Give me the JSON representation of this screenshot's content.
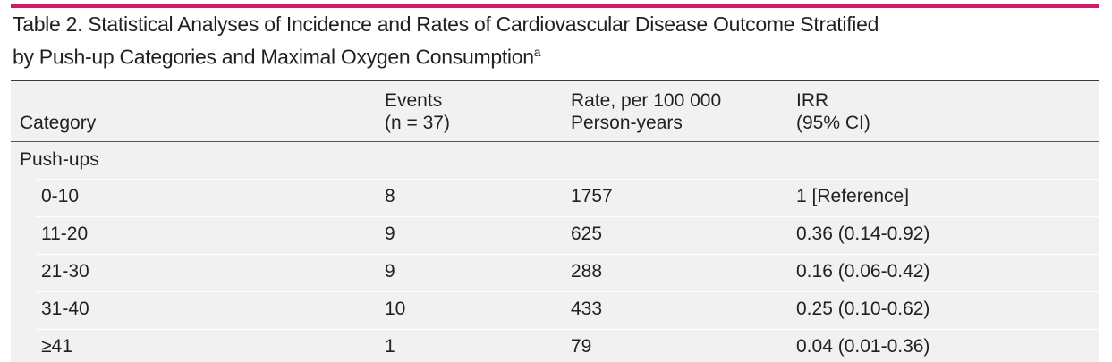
{
  "header": {
    "title_line1": "Table 2. Statistical Analyses of Incidence and Rates of Cardiovascular Disease Outcome Stratified",
    "title_line2": "by Push-up Categories and Maximal Oxygen Consumption",
    "title_note": "a"
  },
  "table": {
    "columns": [
      [
        "Category"
      ],
      [
        "Events",
        "(n = 37)"
      ],
      [
        "Rate, per 100 000",
        "Person-years"
      ],
      [
        "IRR",
        "(95% CI)"
      ]
    ],
    "group": "Push-ups",
    "rows": [
      [
        "0-10",
        "8",
        "1757",
        "1 [Reference]"
      ],
      [
        "11-20",
        "9",
        "625",
        "0.36 (0.14-0.92)"
      ],
      [
        "21-30",
        "9",
        "288",
        "0.16 (0.06-0.42)"
      ],
      [
        "31-40",
        "10",
        "433",
        "0.25 (0.10-0.62)"
      ],
      [
        "≥41",
        "1",
        "79",
        "0.04 (0.01-0.36)"
      ]
    ]
  }
}
